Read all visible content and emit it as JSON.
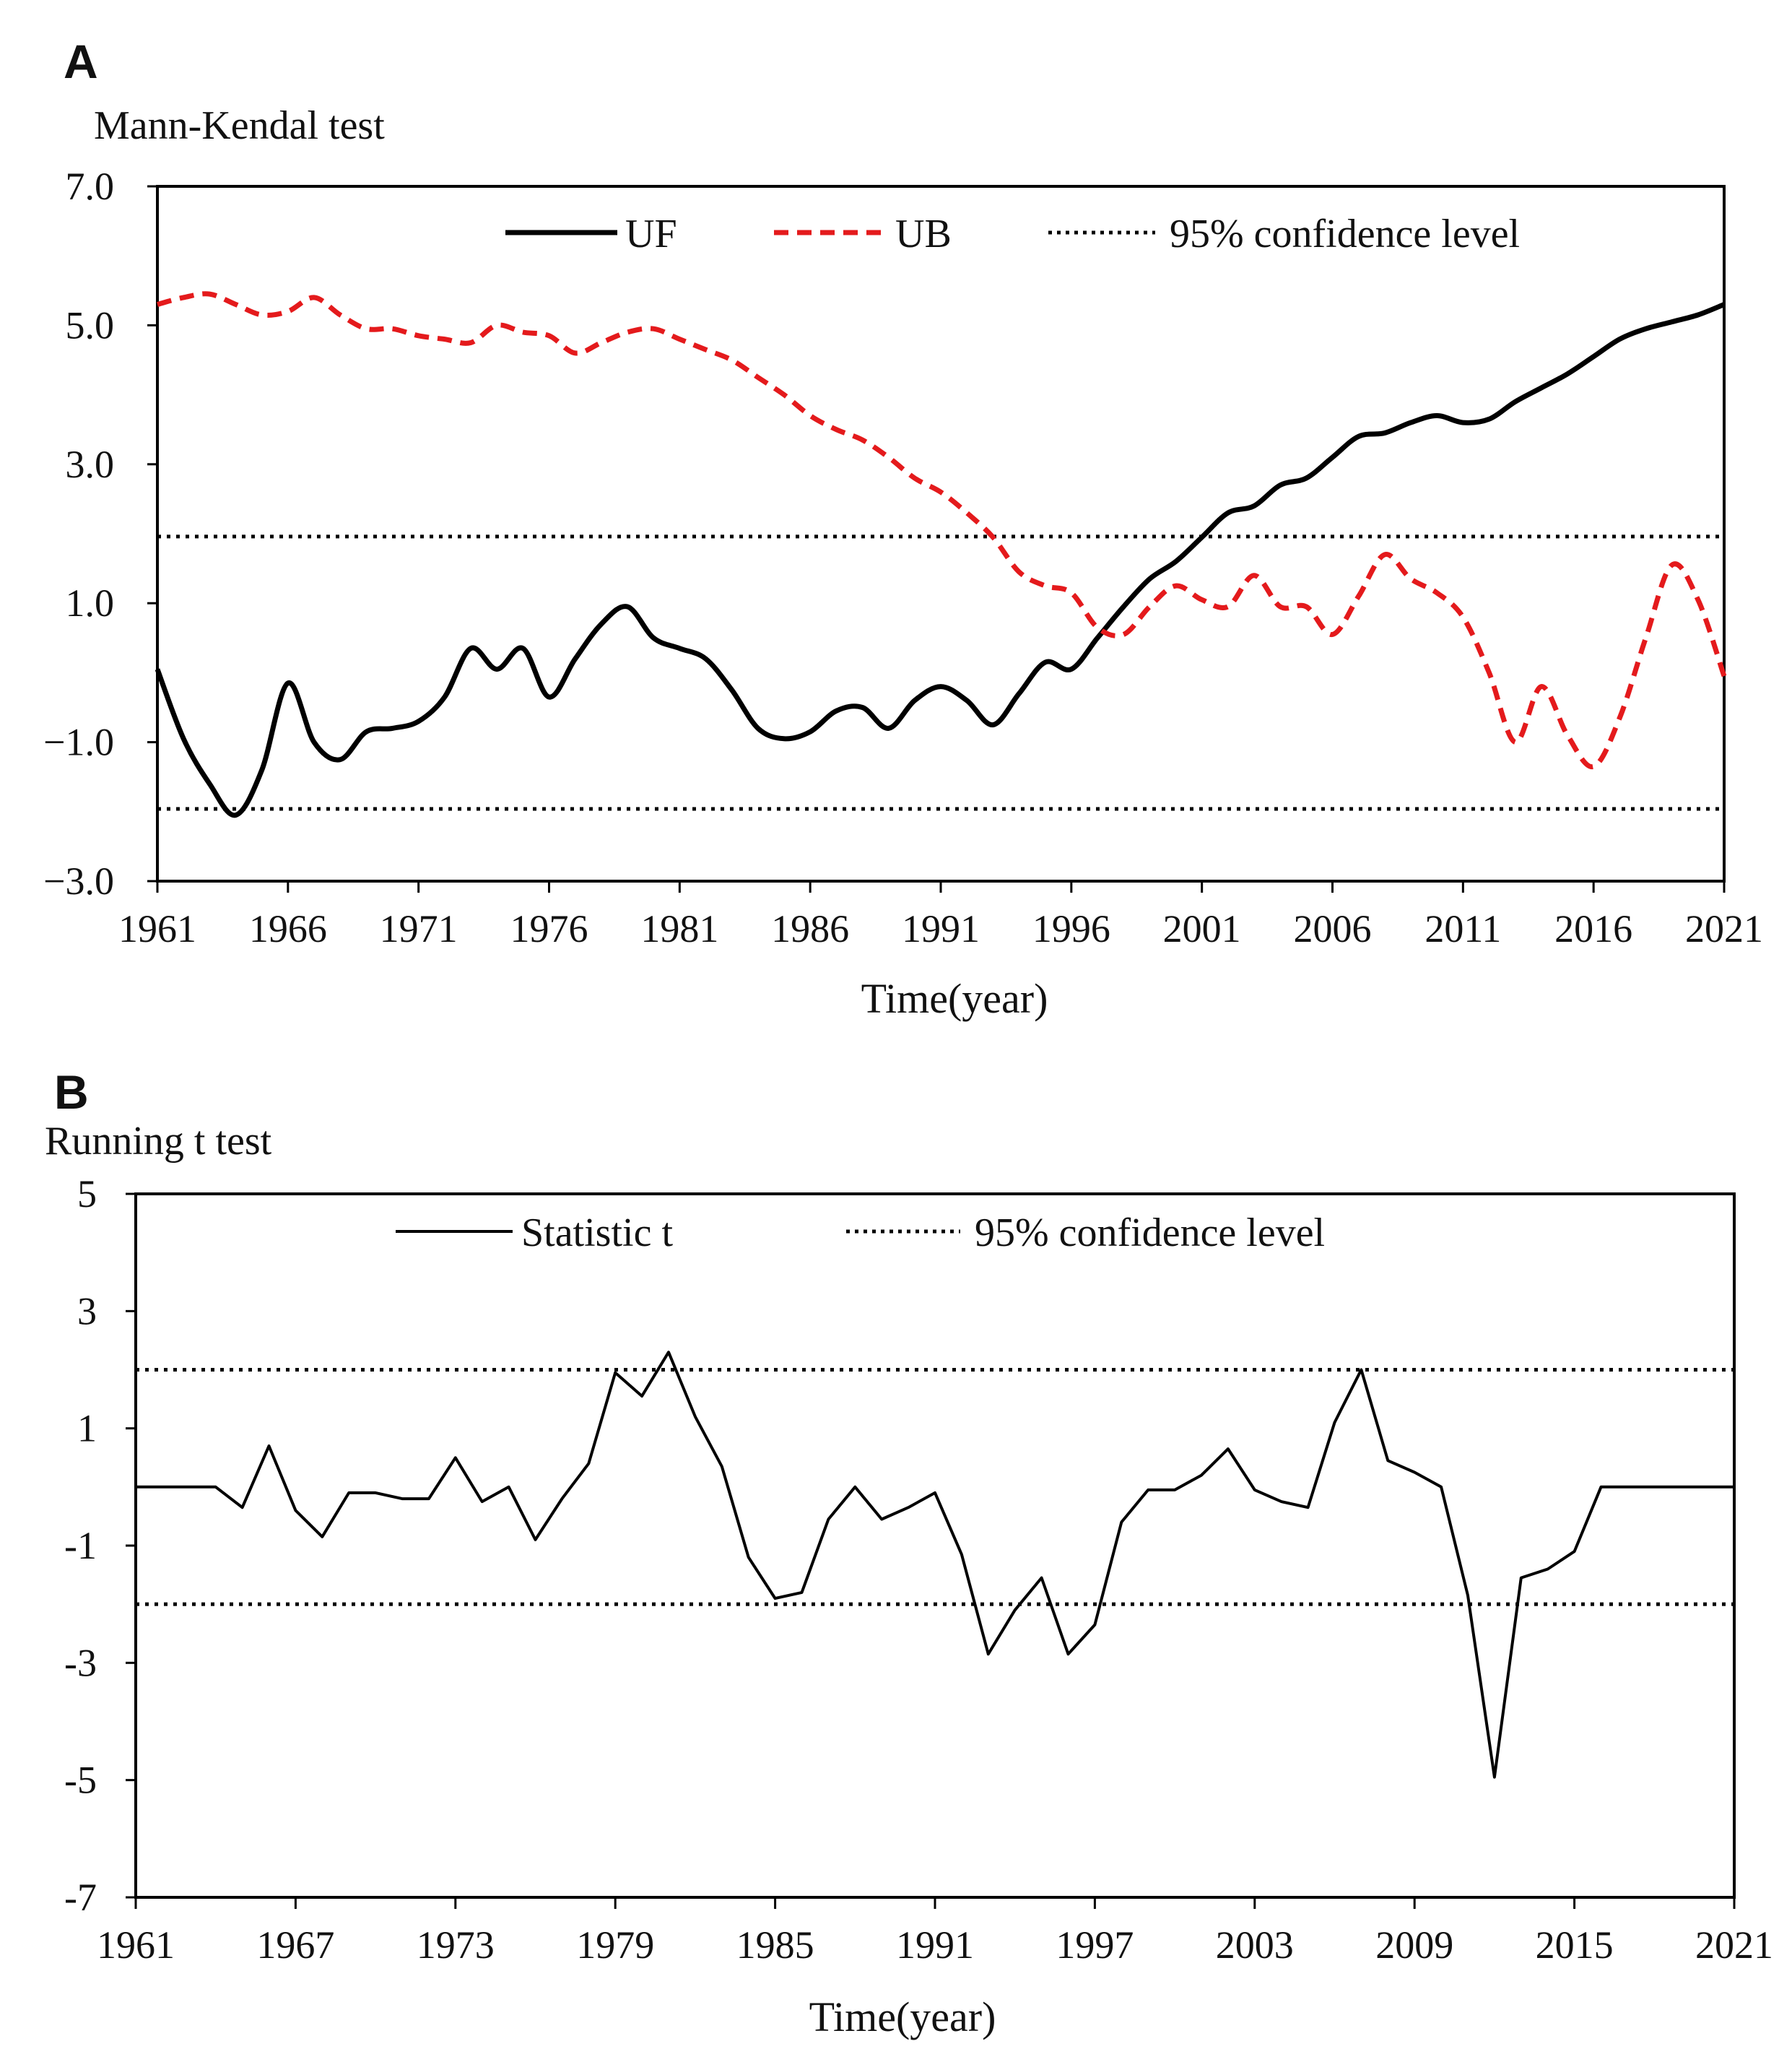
{
  "chart_data": [
    {
      "panel": "A",
      "type": "line",
      "ylabel": "Mann-Kendal  test",
      "xlabel": "Time(year)",
      "xlim": [
        1961,
        2021
      ],
      "ylim": [
        -3.0,
        7.0
      ],
      "yticks": [
        "7.0",
        "5.0",
        "3.0",
        "1.0",
        "−1.0",
        "−3.0"
      ],
      "xticks": [
        "1961",
        "1966",
        "1971",
        "1976",
        "1981",
        "1986",
        "1991",
        "1996",
        "2001",
        "2006",
        "2011",
        "2016",
        "2021"
      ],
      "legend": {
        "uf": "UF",
        "ub": "UB",
        "conf": "95% confidence level"
      },
      "confidence": [
        1.96,
        -1.96
      ],
      "colors": {
        "uf": "#000000",
        "ub": "#e41a1c",
        "conf": "#000000"
      },
      "x": [
        1961,
        1962,
        1963,
        1964,
        1965,
        1966,
        1967,
        1968,
        1969,
        1970,
        1971,
        1972,
        1973,
        1974,
        1975,
        1976,
        1977,
        1978,
        1979,
        1980,
        1981,
        1982,
        1983,
        1984,
        1985,
        1986,
        1987,
        1988,
        1989,
        1990,
        1991,
        1992,
        1993,
        1994,
        1995,
        1996,
        1997,
        1998,
        1999,
        2000,
        2001,
        2002,
        2003,
        2004,
        2005,
        2006,
        2007,
        2008,
        2009,
        2010,
        2011,
        2012,
        2013,
        2014,
        2015,
        2016,
        2017,
        2018,
        2019,
        2020,
        2021
      ],
      "series": [
        {
          "name": "UF",
          "values": [
            0.05,
            -0.95,
            -1.6,
            -2.05,
            -1.4,
            -0.15,
            -1.0,
            -1.25,
            -0.85,
            -0.8,
            -0.7,
            -0.35,
            0.35,
            0.05,
            0.35,
            -0.35,
            0.2,
            0.7,
            0.95,
            0.5,
            0.35,
            0.2,
            -0.25,
            -0.8,
            -0.95,
            -0.85,
            -0.55,
            -0.5,
            -0.8,
            -0.4,
            -0.2,
            -0.4,
            -0.75,
            -0.3,
            0.15,
            0.05,
            0.5,
            0.95,
            1.35,
            1.6,
            1.95,
            2.3,
            2.4,
            2.7,
            2.8,
            3.1,
            3.4,
            3.45,
            3.6,
            3.7,
            3.6,
            3.65,
            3.9,
            4.1,
            4.3,
            4.55,
            4.8,
            4.95,
            5.05,
            5.15,
            5.3
          ]
        },
        {
          "name": "UB",
          "values": [
            5.3,
            5.4,
            5.45,
            5.3,
            5.15,
            5.2,
            5.4,
            5.15,
            4.95,
            4.95,
            4.85,
            4.8,
            4.75,
            5.0,
            4.9,
            4.85,
            4.6,
            4.75,
            4.9,
            4.95,
            4.8,
            4.65,
            4.5,
            4.25,
            4.0,
            3.7,
            3.5,
            3.35,
            3.1,
            2.8,
            2.6,
            2.3,
            1.95,
            1.45,
            1.25,
            1.15,
            0.65,
            0.55,
            0.95,
            1.25,
            1.05,
            0.95,
            1.4,
            0.95,
            0.95,
            0.55,
            1.1,
            1.7,
            1.35,
            1.15,
            0.8,
            0.0,
            -1.0,
            -0.2,
            -0.9,
            -1.35,
            -0.65,
            0.5,
            1.55,
            1.05,
            -0.05
          ]
        }
      ]
    },
    {
      "panel": "B",
      "type": "line",
      "ylabel": "Running t test",
      "xlabel": "Time(year)",
      "xlim": [
        1961,
        2021
      ],
      "ylim": [
        -7,
        5
      ],
      "yticks": [
        "5",
        "3",
        "1",
        "-1",
        "-3",
        "-5",
        "-7"
      ],
      "xticks": [
        "1961",
        "1967",
        "1973",
        "1979",
        "1985",
        "1991",
        "1997",
        "2003",
        "2009",
        "2015",
        "2021"
      ],
      "legend": {
        "stat": "Statistic t",
        "conf": "95% confidence level"
      },
      "confidence": [
        2.0,
        -2.0
      ],
      "colors": {
        "stat": "#000000",
        "conf": "#000000"
      },
      "x": [
        1961,
        1962,
        1963,
        1964,
        1965,
        1966,
        1967,
        1968,
        1969,
        1970,
        1971,
        1972,
        1973,
        1974,
        1975,
        1976,
        1977,
        1978,
        1979,
        1980,
        1981,
        1982,
        1983,
        1984,
        1985,
        1986,
        1987,
        1988,
        1989,
        1990,
        1991,
        1992,
        1993,
        1994,
        1995,
        1996,
        1997,
        1998,
        1999,
        2000,
        2001,
        2002,
        2003,
        2004,
        2005,
        2006,
        2007,
        2008,
        2009,
        2010,
        2011,
        2012,
        2013,
        2014,
        2015,
        2016,
        2017,
        2018,
        2019,
        2020,
        2021
      ],
      "series": [
        {
          "name": "Statistic t",
          "values": [
            0,
            0,
            0,
            0,
            -0.35,
            0.7,
            -0.4,
            -0.85,
            -0.1,
            -0.1,
            -0.2,
            -0.2,
            0.5,
            -0.25,
            0,
            -0.9,
            -0.2,
            0.4,
            1.95,
            1.55,
            2.3,
            1.2,
            0.35,
            -1.2,
            -1.9,
            -1.8,
            -0.55,
            0,
            -0.55,
            -0.35,
            -0.1,
            -1.15,
            -2.85,
            -2.1,
            -1.55,
            -2.85,
            -2.35,
            -0.6,
            -0.05,
            -0.05,
            0.2,
            0.65,
            -0.05,
            -0.25,
            -0.35,
            1.1,
            2.0,
            0.45,
            0.25,
            0,
            -1.85,
            -4.95,
            -1.55,
            -1.4,
            -1.1,
            0,
            0,
            0,
            0,
            0,
            0
          ]
        }
      ]
    }
  ]
}
